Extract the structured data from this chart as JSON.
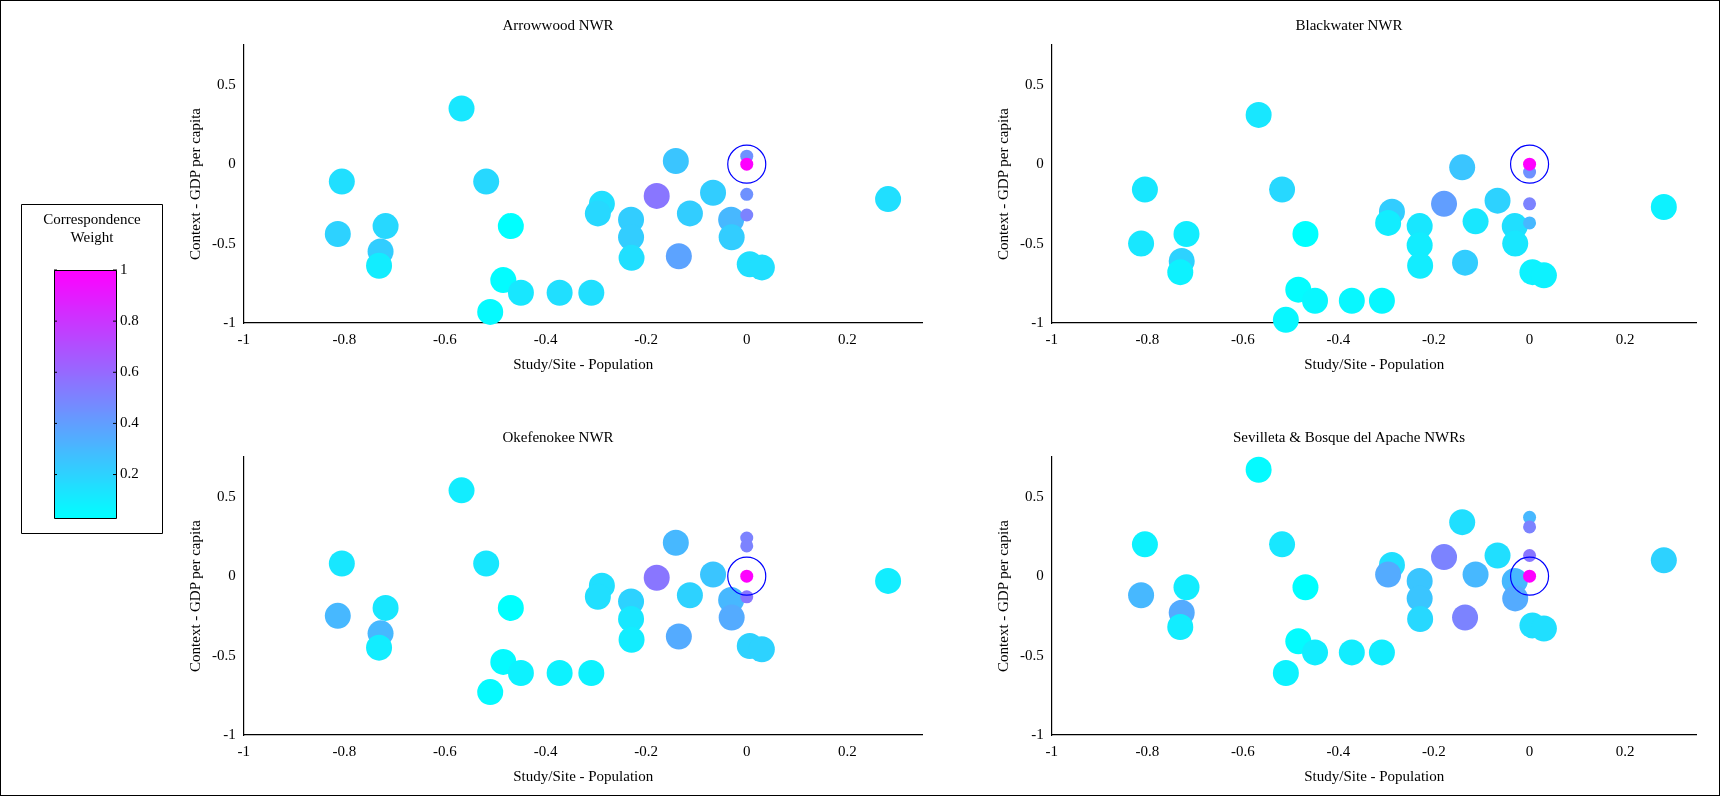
{
  "chart_data": [
    {
      "type": "bubble",
      "title": "Arrowwood NWR",
      "xlabel": "Study/Site - Population",
      "ylabel": "Context - GDP per capita",
      "xlim": [
        -1,
        0.35
      ],
      "ylim": [
        -1,
        0.75
      ],
      "xticks": [
        -1,
        -0.8,
        -0.6,
        -0.4,
        -0.2,
        0,
        0.2
      ],
      "yticks": [
        -1,
        -0.5,
        0,
        0.5
      ],
      "clabel": "Correspondence Weight",
      "clim": [
        0.03,
        1
      ],
      "cticks": [
        0.2,
        0.4,
        0.6,
        0.8,
        1
      ],
      "series": [
        {
          "x": [
            -0.567,
            -0.805,
            -0.813,
            -0.718,
            -0.728,
            -0.731,
            -0.518,
            -0.469,
            -0.484,
            -0.51,
            -0.449,
            -0.372,
            -0.309,
            -0.288,
            -0.296,
            -0.23,
            -0.23,
            -0.229,
            -0.179,
            -0.141,
            -0.135,
            -0.113,
            -0.067,
            -0.031,
            -0.03,
            0.006,
            0.03,
            0.281,
            0,
            0,
            0,
            0
          ],
          "values": [
            0.35,
            -0.11,
            -0.44,
            -0.39,
            -0.55,
            -0.64,
            -0.11,
            -0.39,
            -0.73,
            -0.93,
            -0.81,
            -0.81,
            -0.81,
            -0.25,
            -0.31,
            -0.35,
            -0.46,
            -0.59,
            -0.2,
            0.02,
            -0.58,
            -0.31,
            -0.18,
            -0.35,
            -0.46,
            -0.63,
            -0.65,
            -0.22,
            0.05,
            0,
            -0.19,
            -0.32
          ],
          "colors": [
            "#18e7ff",
            "#20dfff",
            "#2dd2ff",
            "#27d8ff",
            "#32cdff",
            "#12edff",
            "#27d8ff",
            "#00ffff",
            "#03fcff",
            "#05faff",
            "#18e7ff",
            "#20dfff",
            "#20dfff",
            "#20dfff",
            "#27d8ff",
            "#32cdff",
            "#32cdff",
            "#20dfff",
            "#8976ff",
            "#3ac5ff",
            "#5ca3ff",
            "#32cdff",
            "#32cdff",
            "#47b8ff",
            "#32cdff",
            "#20dfff",
            "#20dfff",
            "#20dfff",
            "#6e91ff",
            "#ff00ff",
            "#6e91ff",
            "#7c83ff"
          ],
          "sizes": [
            1,
            1,
            1,
            1,
            1,
            1,
            1,
            1,
            1,
            1,
            1,
            1,
            1,
            1,
            1,
            1,
            1,
            1,
            1,
            1,
            1,
            1,
            1,
            1,
            1,
            1,
            1,
            1,
            0.25,
            0.25,
            0.25,
            0.25
          ]
        },
        {
          "type": "scatter",
          "x": [
            0
          ],
          "values": [
            0
          ],
          "color": "#0000ff",
          "marker": "circle"
        }
      ]
    },
    {
      "type": "bubble",
      "title": "Blackwater NWR",
      "xlabel": "Study/Site - Population",
      "ylabel": "Context - GDP per capita",
      "xlim": [
        -1,
        0.35
      ],
      "ylim": [
        -1,
        0.75
      ],
      "xticks": [
        -1,
        -0.8,
        -0.6,
        -0.4,
        -0.2,
        0,
        0.2
      ],
      "yticks": [
        -1,
        -0.5,
        0,
        0.5
      ],
      "series": [
        {
          "x": [
            -0.567,
            -0.805,
            -0.813,
            -0.718,
            -0.728,
            -0.731,
            -0.518,
            -0.469,
            -0.484,
            -0.51,
            -0.449,
            -0.372,
            -0.309,
            -0.288,
            -0.296,
            -0.23,
            -0.23,
            -0.229,
            -0.179,
            -0.141,
            -0.135,
            -0.113,
            -0.067,
            -0.031,
            -0.03,
            0.006,
            0.03,
            0.281,
            0,
            0,
            0,
            0
          ],
          "values": [
            0.31,
            -0.16,
            -0.5,
            -0.44,
            -0.61,
            -0.68,
            -0.16,
            -0.44,
            -0.79,
            -0.98,
            -0.86,
            -0.86,
            -0.86,
            -0.3,
            -0.37,
            -0.39,
            -0.51,
            -0.64,
            -0.25,
            -0.02,
            -0.62,
            -0.36,
            -0.23,
            -0.39,
            -0.5,
            -0.68,
            -0.7,
            -0.27,
            -0.05,
            0,
            -0.25,
            -0.37
          ],
          "colors": [
            "#18e7ff",
            "#18e7ff",
            "#18e7ff",
            "#12edff",
            "#2dd2ff",
            "#0df2ff",
            "#27d8ff",
            "#00ffff",
            "#03fcff",
            "#08f7ff",
            "#08f7ff",
            "#08f7ff",
            "#08f7ff",
            "#32cdff",
            "#12edff",
            "#18e7ff",
            "#12edff",
            "#12edff",
            "#619eff",
            "#3ac5ff",
            "#32cdff",
            "#18e7ff",
            "#2dd2ff",
            "#20dfff",
            "#18e7ff",
            "#0df2ff",
            "#0df2ff",
            "#0df2ff",
            "#6e91ff",
            "#ff00ff",
            "#7c83ff",
            "#47b8ff"
          ],
          "sizes": [
            1,
            1,
            1,
            1,
            1,
            1,
            1,
            1,
            1,
            1,
            1,
            1,
            1,
            1,
            1,
            1,
            1,
            1,
            1,
            1,
            1,
            1,
            1,
            1,
            1,
            1,
            1,
            1,
            0.25,
            0.25,
            0.25,
            0.25
          ]
        },
        {
          "type": "scatter",
          "x": [
            0
          ],
          "values": [
            0
          ],
          "color": "#0000ff",
          "marker": "circle"
        }
      ]
    },
    {
      "type": "bubble",
      "title": "Okefenokee NWR",
      "xlabel": "Study/Site - Population",
      "ylabel": "Context - GDP per capita",
      "xlim": [
        -1,
        0.35
      ],
      "ylim": [
        -1,
        0.75
      ],
      "xticks": [
        -1,
        -0.8,
        -0.6,
        -0.4,
        -0.2,
        0,
        0.2
      ],
      "yticks": [
        -1,
        -0.5,
        0,
        0.5
      ],
      "series": [
        {
          "x": [
            -0.567,
            -0.805,
            -0.813,
            -0.718,
            -0.728,
            -0.731,
            -0.518,
            -0.469,
            -0.484,
            -0.51,
            -0.449,
            -0.372,
            -0.309,
            -0.288,
            -0.296,
            -0.23,
            -0.23,
            -0.229,
            -0.179,
            -0.141,
            -0.135,
            -0.113,
            -0.067,
            -0.031,
            -0.03,
            0.006,
            0.03,
            0.281,
            0,
            0,
            0,
            0
          ],
          "values": [
            0.54,
            0.08,
            -0.25,
            -0.2,
            -0.36,
            -0.45,
            0.08,
            -0.2,
            -0.54,
            -0.73,
            -0.61,
            -0.61,
            -0.61,
            -0.06,
            -0.13,
            -0.16,
            -0.27,
            -0.4,
            -0.01,
            0.21,
            -0.38,
            -0.12,
            0.01,
            -0.15,
            -0.26,
            -0.44,
            -0.46,
            -0.03,
            0.24,
            0.19,
            0,
            -0.13
          ],
          "colors": [
            "#12edff",
            "#18e7ff",
            "#47b8ff",
            "#18e7ff",
            "#47b8ff",
            "#12edff",
            "#18e7ff",
            "#00ffff",
            "#05faff",
            "#05faff",
            "#0df2ff",
            "#0df2ff",
            "#0df2ff",
            "#20dfff",
            "#20dfff",
            "#2dd2ff",
            "#18e7ff",
            "#12edff",
            "#8976ff",
            "#47b8ff",
            "#54abff",
            "#2dd2ff",
            "#3ac5ff",
            "#47b8ff",
            "#54abff",
            "#2dd2ff",
            "#2dd2ff",
            "#12edff",
            "#7c83ff",
            "#7c83ff",
            "#ff00ff",
            "#8976ff"
          ],
          "sizes": [
            1,
            1,
            1,
            1,
            1,
            1,
            1,
            1,
            1,
            1,
            1,
            1,
            1,
            1,
            1,
            1,
            1,
            1,
            1,
            1,
            1,
            1,
            1,
            1,
            1,
            1,
            1,
            1,
            0.25,
            0.25,
            0.25,
            0.25
          ]
        },
        {
          "type": "scatter",
          "x": [
            0
          ],
          "values": [
            0
          ],
          "color": "#0000ff",
          "marker": "circle"
        }
      ]
    },
    {
      "type": "bubble",
      "title": "Sevilleta & Bosque del Apache NWRs",
      "xlabel": "Study/Site - Population",
      "ylabel": "Context - GDP per capita",
      "xlim": [
        -1,
        0.35
      ],
      "ylim": [
        -1,
        0.75
      ],
      "xticks": [
        -1,
        -0.8,
        -0.6,
        -0.4,
        -0.2,
        0,
        0.2
      ],
      "yticks": [
        -1,
        -0.5,
        0,
        0.5
      ],
      "series": [
        {
          "x": [
            -0.567,
            -0.805,
            -0.813,
            -0.718,
            -0.728,
            -0.731,
            -0.518,
            -0.469,
            -0.484,
            -0.51,
            -0.449,
            -0.372,
            -0.309,
            -0.288,
            -0.296,
            -0.23,
            -0.23,
            -0.229,
            -0.179,
            -0.141,
            -0.135,
            -0.113,
            -0.067,
            -0.031,
            -0.03,
            0.006,
            0.03,
            0.281,
            0,
            0,
            0,
            0
          ],
          "values": [
            0.67,
            0.2,
            -0.12,
            -0.07,
            -0.23,
            -0.32,
            0.2,
            -0.07,
            -0.41,
            -0.61,
            -0.48,
            -0.48,
            -0.48,
            0.07,
            0.01,
            -0.03,
            -0.14,
            -0.27,
            0.12,
            0.34,
            -0.26,
            0.01,
            0.13,
            -0.03,
            -0.14,
            -0.31,
            -0.33,
            0.1,
            0.37,
            0.31,
            0.13,
            0
          ],
          "colors": [
            "#05faff",
            "#0df2ff",
            "#47b8ff",
            "#12edff",
            "#54abff",
            "#12edff",
            "#18e7ff",
            "#00ffff",
            "#03fcff",
            "#0df2ff",
            "#12edff",
            "#12edff",
            "#12edff",
            "#20dfff",
            "#54abff",
            "#3ac5ff",
            "#3ac5ff",
            "#27d8ff",
            "#7c83ff",
            "#20dfff",
            "#7c83ff",
            "#47b8ff",
            "#20dfff",
            "#47b8ff",
            "#54abff",
            "#20dfff",
            "#20dfff",
            "#2dd2ff",
            "#47b8ff",
            "#7c83ff",
            "#8976ff",
            "#ff00ff"
          ],
          "sizes": [
            1,
            1,
            1,
            1,
            1,
            1,
            1,
            1,
            1,
            1,
            1,
            1,
            1,
            1,
            1,
            1,
            1,
            1,
            1,
            1,
            1,
            1,
            1,
            1,
            1,
            1,
            1,
            1,
            0.25,
            0.25,
            0.25,
            0.25
          ]
        },
        {
          "type": "scatter",
          "x": [
            0
          ],
          "values": [
            0
          ],
          "color": "#0000ff",
          "marker": "circle"
        }
      ]
    }
  ]
}
